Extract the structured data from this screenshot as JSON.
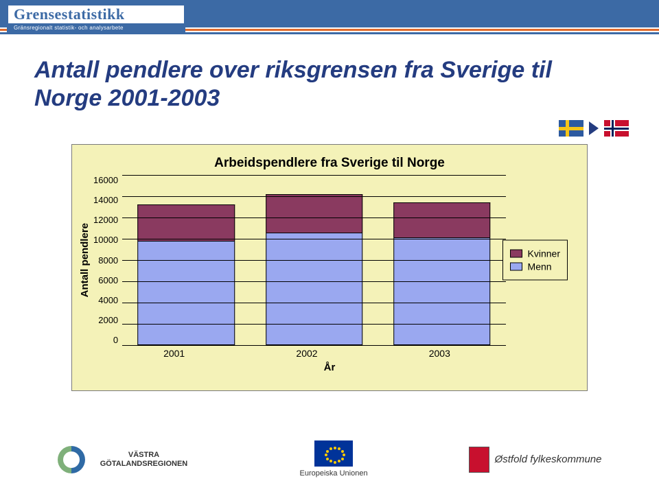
{
  "header": {
    "brand": "Grensestatistikk",
    "sub": "Gränsregionalt statistik- och analysarbete"
  },
  "title": "Antall pendlere over riksgrensen fra Sverige til Norge 2001-2003",
  "chart": {
    "type": "stacked-bar",
    "title": "Arbeidspendlere fra Sverige til Norge",
    "background_color": "#f4f2b8",
    "ylabel": "Antall pendlere",
    "xlabel": "År",
    "ylim": [
      0,
      16000
    ],
    "ytick_step": 2000,
    "yticks": [
      16000,
      14000,
      12000,
      10000,
      8000,
      6000,
      4000,
      2000,
      0
    ],
    "categories": [
      "2001",
      "2002",
      "2003"
    ],
    "series": [
      {
        "name": "Kvinner",
        "color": "#8a3a60"
      },
      {
        "name": "Menn",
        "color": "#9aa8f0"
      }
    ],
    "data": [
      {
        "year": "2001",
        "menn": 9800,
        "kvinner": 3400
      },
      {
        "year": "2002",
        "menn": 10600,
        "kvinner": 3600
      },
      {
        "year": "2003",
        "menn": 10100,
        "kvinner": 3300
      }
    ],
    "grid_color": "#000000",
    "axis_font_size": 13,
    "label_font_size": 15,
    "title_font_size": 19
  },
  "footer": {
    "vg_label": "VÄSTRA GÖTALANDSREGIONEN",
    "eu_label": "Europeiska Unionen",
    "ostfold_label": "Østfold fylkeskommune"
  }
}
